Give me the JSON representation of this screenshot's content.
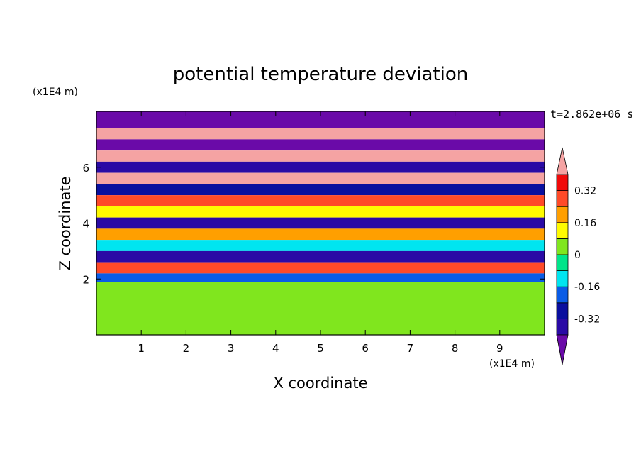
{
  "chart_data": {
    "type": "heatmap",
    "title": "potential temperature deviation",
    "xlabel": "X coordinate",
    "ylabel": "Z coordinate",
    "x_unit": "(x1E4 m)",
    "z_unit": "(x1E4 m)",
    "time_label": "t=2.862e+06 s",
    "xlim": [
      0,
      10
    ],
    "ylim": [
      0,
      8
    ],
    "x_ticks": [
      "1",
      "2",
      "3",
      "4",
      "5",
      "6",
      "7",
      "8",
      "9"
    ],
    "x_tick_values": [
      1,
      2,
      3,
      4,
      5,
      6,
      7,
      8,
      9
    ],
    "y_ticks": [
      "2",
      "4",
      "6"
    ],
    "y_tick_values": [
      2,
      4,
      6
    ],
    "colorbar": {
      "labels": [
        "0.32",
        "0.16",
        "0",
        "-0.16",
        "-0.32"
      ],
      "label_values": [
        0.32,
        0.16,
        0,
        -0.16,
        -0.32
      ],
      "levels": [
        -0.4,
        -0.32,
        -0.24,
        -0.16,
        -0.08,
        0,
        0.08,
        0.16,
        0.24,
        0.32,
        0.4
      ],
      "colors_low_to_high": [
        "#6a0aa8",
        "#2a0aa5",
        "#0a0f9e",
        "#0a5ce6",
        "#00e5f0",
        "#00e58a",
        "#80e61e",
        "#fffb00",
        "#ff9f00",
        "#ff4a28",
        "#f00a0a",
        "#f5a3a3"
      ],
      "under_color": "#6a0aa8",
      "over_color": "#f5a3a3"
    },
    "layers": [
      {
        "z": [
          7.4,
          8.0
        ],
        "value": -0.45
      },
      {
        "z": [
          7.0,
          7.4
        ],
        "value": 0.45
      },
      {
        "z": [
          6.6,
          7.0
        ],
        "value": -0.45
      },
      {
        "z": [
          6.2,
          6.6
        ],
        "value": 0.45
      },
      {
        "z": [
          5.8,
          6.2
        ],
        "value": -0.4
      },
      {
        "z": [
          5.4,
          5.8
        ],
        "value": 0.42
      },
      {
        "z": [
          5.0,
          5.4
        ],
        "value": -0.3
      },
      {
        "z": [
          4.6,
          5.0
        ],
        "value": 0.3
      },
      {
        "z": [
          4.2,
          4.6
        ],
        "value": 0.1
      },
      {
        "z": [
          3.8,
          4.2
        ],
        "value": -0.36
      },
      {
        "z": [
          3.4,
          3.8
        ],
        "value": 0.2
      },
      {
        "z": [
          3.0,
          3.4
        ],
        "value": -0.1
      },
      {
        "z": [
          2.6,
          3.0
        ],
        "value": -0.36
      },
      {
        "z": [
          2.2,
          2.6
        ],
        "value": 0.3
      },
      {
        "z": [
          1.9,
          2.2
        ],
        "value": -0.2
      },
      {
        "z": [
          0.0,
          1.9
        ],
        "value": 0.02
      }
    ]
  }
}
